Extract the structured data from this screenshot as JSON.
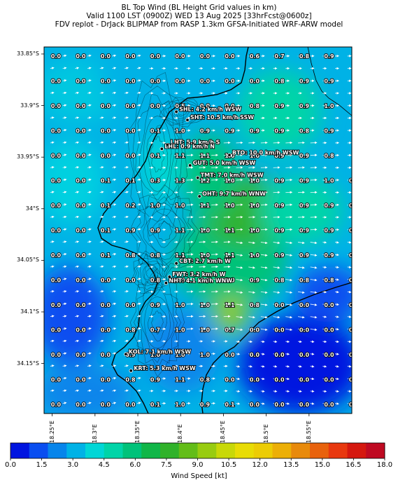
{
  "title": {
    "line1": "BL Top Wind (BL Height Grid values in km)",
    "line2": "Valid 1100 LST (0900Z) WED 13 Aug 2025 [33hrFcst@0600z]",
    "line3": "FDV replot - DrJack BLIPMAP from RASP 1.3km GFSA-Initiated WRF-ARW model"
  },
  "lat_labels": [
    "33.85°S",
    "33.9°S",
    "33.95°S",
    "34°S",
    "34.05°S",
    "34.1°S",
    "34.15°S"
  ],
  "lon_labels": [
    "18.25°E",
    "18.3°E",
    "18.35°E",
    "18.4°E",
    "18.45°E",
    "18.5°E",
    "18.55°E"
  ],
  "grid": [
    [
      "0.0",
      "0.0",
      "0.0",
      "0.0",
      "0.0",
      "0.0",
      "0.0",
      "0.0",
      "0.6",
      "0.7",
      "0.8",
      "0.9",
      ""
    ],
    [
      "0.0",
      "0.0",
      "0.0",
      "0.0",
      "0.0",
      "0.0",
      "0.0",
      "0.0",
      "0.0",
      "0.8",
      "0.9",
      "0.9",
      ""
    ],
    [
      "0.0",
      "0.0",
      "0.0",
      "0.0",
      "0.0",
      "0.5",
      "0.0",
      "0.0",
      "0.8",
      "0.9",
      "0.9",
      "1.0",
      ""
    ],
    [
      "0.0",
      "0.0",
      "0.0",
      "0.0",
      "0.1",
      "1.0",
      "0.9",
      "0.9",
      "0.9",
      "0.9",
      "0.8",
      "0.9",
      ""
    ],
    [
      "0.0",
      "0.0",
      "0.0",
      "0.0",
      "0.1",
      "1.1",
      "1.1",
      "1.0",
      "1.0",
      "0.9",
      "0.9",
      "0.8",
      ""
    ],
    [
      "0.0",
      "0.0",
      "0.1",
      "0.1",
      "0.3",
      "1.3",
      "1.2",
      "1.0",
      "1.0",
      "0.9",
      "0.9",
      "1.0",
      "0.8"
    ],
    [
      "0.0",
      "0.0",
      "0.1",
      "0.2",
      "1.0",
      "1.0",
      "1.1",
      "1.0",
      "1.0",
      "0.9",
      "0.9",
      "0.9",
      "0.9"
    ],
    [
      "0.0",
      "0.0",
      "0.1",
      "0.9",
      "0.9",
      "1.1",
      "1.0",
      "1.1",
      "1.0",
      "0.9",
      "0.9",
      "0.9",
      "0.9"
    ],
    [
      "0.0",
      "0.0",
      "0.1",
      "0.8",
      "0.8",
      "1.1",
      "1.0",
      "1.1",
      "1.0",
      "0.9",
      "0.9",
      "0.9",
      "0.8"
    ],
    [
      "0.0",
      "0.0",
      "0.0",
      "0.0",
      "0.8",
      "0.0",
      "0.0",
      "0.0",
      "0.9",
      "0.8",
      "0.8",
      "0.8",
      "0.0"
    ],
    [
      "0.0",
      "0.0",
      "0.0",
      "0.0",
      "0.9",
      "1.0",
      "1.0",
      "1.1",
      "0.8",
      "0.0",
      "0.0",
      "0.0",
      "0.0"
    ],
    [
      "0.0",
      "0.0",
      "0.0",
      "0.8",
      "0.7",
      "1.0",
      "1.0",
      "0.7",
      "0.0",
      "0.0",
      "0.0",
      "0.0",
      "0.0"
    ],
    [
      "0.0",
      "0.0",
      "0.0",
      "0.9",
      "1.0",
      "1.0",
      "1.0",
      "0.0",
      "0.0",
      "0.0",
      "0.0",
      "0.0",
      "0.0"
    ],
    [
      "0.0",
      "0.0",
      "0.0",
      "0.8",
      "0.9",
      "1.1",
      "0.8",
      "0.0",
      "0.0",
      "0.0",
      "0.0",
      "0.0",
      "0.0"
    ],
    [
      "0.0",
      "0.0",
      "0.0",
      "0.0",
      "0.1",
      "1.0",
      "0.9",
      "0.1",
      "0.0",
      "0.0",
      "0.0",
      "0.0",
      "0.0"
    ]
  ],
  "stations": [
    {
      "label": "SHL: 4.2 km/h WSW",
      "lon": 18.395,
      "lat": -33.906
    },
    {
      "label": "SHT: 10.5 km/h SSW",
      "lon": 18.408,
      "lat": -33.914
    },
    {
      "label": "LHT: 5.9 km/h S",
      "lon": 18.385,
      "lat": -33.938
    },
    {
      "label": "LHL: 0.9 km/h N",
      "lon": 18.378,
      "lat": -33.942
    },
    {
      "label": "BTO: 10.0 km/h WSW",
      "lon": 18.457,
      "lat": -33.948
    },
    {
      "label": "GUT: 5.0 km/h WSW",
      "lon": 18.411,
      "lat": -33.958
    },
    {
      "label": "TMT: 7.0 km/h WSW",
      "lon": 18.42,
      "lat": -33.97
    },
    {
      "label": "OHT: 9.7 km/h WNW",
      "lon": 18.422,
      "lat": -33.988
    },
    {
      "label": "CBT: 2.7 km/h W",
      "lon": 18.395,
      "lat": -34.053
    },
    {
      "label": "FWT: 3.2 km/h W",
      "lon": 18.387,
      "lat": -34.066
    },
    {
      "label": "NHT: 4.1 km/h WNW",
      "lon": 18.383,
      "lat": -34.072
    },
    {
      "label": "KOL: 7.1 km/h WSW",
      "lon": 18.336,
      "lat": -34.141
    },
    {
      "label": "KRT: 5.3 km/h WSW",
      "lon": 18.342,
      "lat": -34.157
    }
  ],
  "colorbar": {
    "title": "Wind Speed [kt]",
    "ticks": [
      "0.0",
      "1.5",
      "3.0",
      "4.5",
      "6.0",
      "7.5",
      "9.0",
      "10.5",
      "12.0",
      "13.5",
      "15.0",
      "16.5",
      "18.0"
    ],
    "colors": [
      "#0015e0",
      "#0a4ef0",
      "#0785eb",
      "#00b2e6",
      "#00d6d6",
      "#00d4a8",
      "#00c27a",
      "#10b648",
      "#30b22a",
      "#63bd18",
      "#98cc10",
      "#c8d808",
      "#e8dc05",
      "#eccc05",
      "#ecaf07",
      "#e88a0b",
      "#e8620d",
      "#e8380f",
      "#d5180f",
      "#bf0a22"
    ]
  }
}
